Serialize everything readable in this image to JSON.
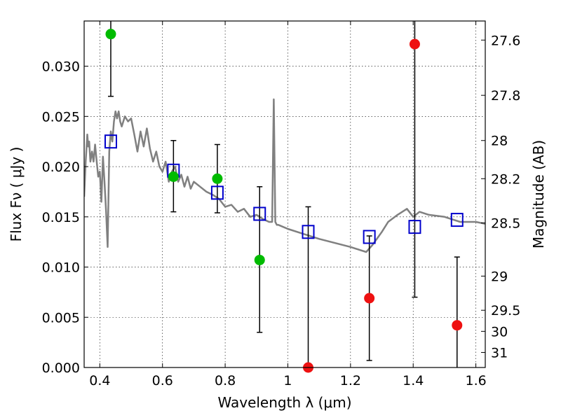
{
  "chart_data": {
    "type": "scatter",
    "xlabel": "Wavelength  λ (μm)",
    "ylabel": "Flux  Fν  ( μJy )",
    "y2label": "Magnitude (AB)",
    "xlim": [
      0.35,
      1.63
    ],
    "ylim": [
      0.0,
      0.0345
    ],
    "grid": true,
    "x_ticks": [
      0.4,
      0.6,
      0.8,
      1.0,
      1.2,
      1.4,
      1.6
    ],
    "x_tick_labels": [
      "0.4",
      "0.6",
      "0.8",
      "1",
      "1.2",
      "1.4",
      "1.6"
    ],
    "y_ticks": [
      0.0,
      0.005,
      0.01,
      0.015,
      0.02,
      0.025,
      0.03
    ],
    "y_tick_labels": [
      "0.000",
      "0.005",
      "0.010",
      "0.015",
      "0.020",
      "0.025",
      "0.030"
    ],
    "y2_ticks": [
      {
        "label": "27.6",
        "flux": 0.0326
      },
      {
        "label": "27.8",
        "flux": 0.0271
      },
      {
        "label": "28",
        "flux": 0.0226
      },
      {
        "label": "28.2",
        "flux": 0.0188
      },
      {
        "label": "28.5",
        "flux": 0.0144
      },
      {
        "label": "29",
        "flux": 0.0091
      },
      {
        "label": "29.5",
        "flux": 0.0057
      },
      {
        "label": "30",
        "flux": 0.0036
      },
      {
        "label": "31",
        "flux": 0.0015
      }
    ],
    "colors": {
      "detection": "#00bb00",
      "upper_limit": "#ee1111",
      "model_point": "#0000cc",
      "model_sed": "#808080",
      "errorbar": "#000000"
    },
    "series": [
      {
        "points": [
          {
            "x": 0.435,
            "y": 0.0332,
            "yerr_lo": 0.027,
            "yerr_hi": 0.0345
          },
          {
            "x": 0.635,
            "y": 0.019,
            "yerr_lo": 0.0155,
            "yerr_hi": 0.0226
          },
          {
            "x": 0.775,
            "y": 0.0188,
            "yerr_lo": 0.0154,
            "yerr_hi": 0.0222
          },
          {
            "x": 0.91,
            "y": 0.0107,
            "yerr_lo": 0.0035,
            "yerr_hi": 0.018
          }
        ]
      },
      {
        "points": [
          {
            "x": 1.065,
            "y": 0.0,
            "yerr_lo": 0.0,
            "yerr_hi": 0.016
          },
          {
            "x": 1.26,
            "y": 0.0069,
            "yerr_lo": 0.0007,
            "yerr_hi": 0.0131
          },
          {
            "x": 1.405,
            "y": 0.0322,
            "yerr_lo": 0.007,
            "yerr_hi": 0.0345
          },
          {
            "x": 1.54,
            "y": 0.0042,
            "yerr_lo": 0.0,
            "yerr_hi": 0.011
          }
        ]
      },
      {
        "points": [
          {
            "x": 0.435,
            "y": 0.0225
          },
          {
            "x": 0.635,
            "y": 0.0196
          },
          {
            "x": 0.775,
            "y": 0.0174
          },
          {
            "x": 0.91,
            "y": 0.0153
          },
          {
            "x": 1.065,
            "y": 0.0135
          },
          {
            "x": 1.26,
            "y": 0.013
          },
          {
            "x": 1.405,
            "y": 0.014
          },
          {
            "x": 1.54,
            "y": 0.0147
          }
        ]
      },
      {
        "x": [
          0.35,
          0.355,
          0.36,
          0.363,
          0.366,
          0.37,
          0.375,
          0.38,
          0.385,
          0.39,
          0.395,
          0.4,
          0.405,
          0.41,
          0.415,
          0.42,
          0.425,
          0.43,
          0.435,
          0.44,
          0.445,
          0.45,
          0.455,
          0.46,
          0.465,
          0.47,
          0.48,
          0.49,
          0.5,
          0.51,
          0.52,
          0.53,
          0.54,
          0.55,
          0.56,
          0.57,
          0.58,
          0.59,
          0.6,
          0.61,
          0.62,
          0.63,
          0.64,
          0.65,
          0.66,
          0.67,
          0.68,
          0.69,
          0.7,
          0.72,
          0.74,
          0.76,
          0.78,
          0.8,
          0.82,
          0.84,
          0.86,
          0.88,
          0.9,
          0.92,
          0.94,
          0.95,
          0.955,
          0.96,
          0.965,
          0.97,
          1.0,
          1.05,
          1.1,
          1.15,
          1.2,
          1.25,
          1.27,
          1.3,
          1.32,
          1.35,
          1.38,
          1.4,
          1.42,
          1.45,
          1.5,
          1.55,
          1.6,
          1.63
        ],
        "y": [
          0.017,
          0.0205,
          0.0232,
          0.022,
          0.0225,
          0.0205,
          0.0215,
          0.0205,
          0.0222,
          0.0205,
          0.019,
          0.0195,
          0.0165,
          0.021,
          0.0185,
          0.0155,
          0.012,
          0.0215,
          0.0235,
          0.0225,
          0.0245,
          0.0255,
          0.0248,
          0.0255,
          0.0245,
          0.024,
          0.025,
          0.0245,
          0.0248,
          0.0232,
          0.0215,
          0.0235,
          0.022,
          0.0238,
          0.0218,
          0.0205,
          0.0215,
          0.02,
          0.0195,
          0.0205,
          0.0185,
          0.0195,
          0.02,
          0.0185,
          0.0192,
          0.018,
          0.019,
          0.0178,
          0.0185,
          0.018,
          0.0175,
          0.0172,
          0.0168,
          0.016,
          0.0162,
          0.0155,
          0.0158,
          0.015,
          0.0152,
          0.0148,
          0.0145,
          0.0145,
          0.0267,
          0.0145,
          0.0142,
          0.0142,
          0.0138,
          0.0133,
          0.0128,
          0.0124,
          0.012,
          0.0115,
          0.0122,
          0.0135,
          0.0145,
          0.0152,
          0.0158,
          0.015,
          0.0155,
          0.0152,
          0.015,
          0.0145,
          0.0145,
          0.0143
        ]
      }
    ]
  }
}
